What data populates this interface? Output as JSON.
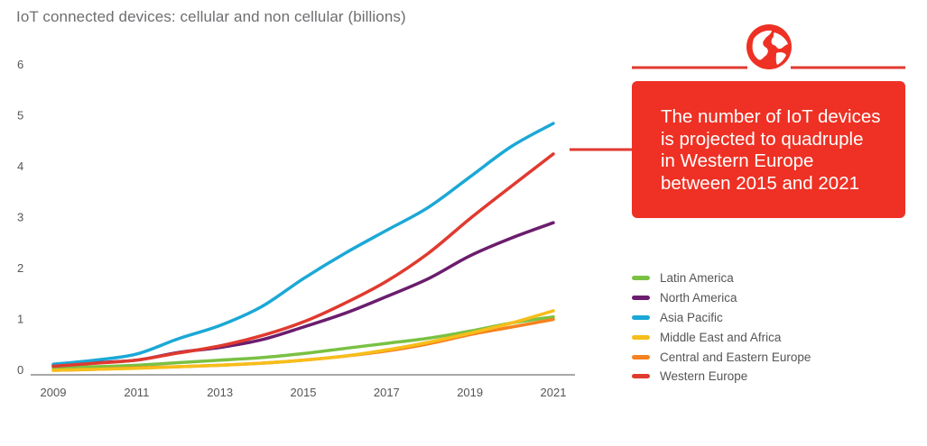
{
  "title": "IoT connected devices: cellular and non cellular (billions)",
  "callout": {
    "lines": [
      "The number of IoT devices",
      "is projected to quadruple",
      "in Western Europe",
      "between 2015 and 2021"
    ],
    "icon": "globe-icon",
    "color": "#ee3124"
  },
  "chart_data": {
    "type": "line",
    "title": "IoT connected devices: cellular and non cellular (billions)",
    "xlabel": "",
    "ylabel": "",
    "x": [
      2009,
      2010,
      2011,
      2012,
      2013,
      2014,
      2015,
      2016,
      2017,
      2018,
      2019,
      2020,
      2021
    ],
    "xticks": [
      2009,
      2011,
      2013,
      2015,
      2017,
      2019,
      2021
    ],
    "xtick_labels": [
      "2009",
      "2011",
      "2013",
      "2015",
      "2017",
      "2019",
      "2021"
    ],
    "yticks": [
      0,
      1,
      2,
      3,
      4,
      5,
      6
    ],
    "ytick_labels": [
      "0",
      "1",
      "2",
      "3",
      "4",
      "5",
      "6"
    ],
    "ylim": [
      0,
      6
    ],
    "grid": false,
    "legend_position": "right",
    "series": [
      {
        "name": "Latin America",
        "color": "#7ac143",
        "values": [
          0.05,
          0.07,
          0.1,
          0.15,
          0.2,
          0.25,
          0.33,
          0.43,
          0.53,
          0.63,
          0.77,
          0.93,
          1.05
        ]
      },
      {
        "name": "North America",
        "color": "#6b1d6e",
        "values": [
          0.1,
          0.15,
          0.2,
          0.35,
          0.45,
          0.6,
          0.85,
          1.12,
          1.45,
          1.8,
          2.25,
          2.6,
          2.9
        ]
      },
      {
        "name": "Asia Pacific",
        "color": "#1ba8d6",
        "values": [
          0.12,
          0.2,
          0.32,
          0.62,
          0.88,
          1.25,
          1.8,
          2.3,
          2.75,
          3.2,
          3.8,
          4.4,
          4.85
        ]
      },
      {
        "name": "Middle East and Africa",
        "color": "#f6be1a",
        "values": [
          0.0,
          0.02,
          0.04,
          0.07,
          0.1,
          0.14,
          0.2,
          0.28,
          0.4,
          0.55,
          0.73,
          0.93,
          1.17
        ]
      },
      {
        "name": "Central and Eastern Europe",
        "color": "#f5821f",
        "values": [
          0.0,
          0.02,
          0.05,
          0.07,
          0.1,
          0.14,
          0.2,
          0.28,
          0.38,
          0.52,
          0.7,
          0.85,
          1.0
        ]
      },
      {
        "name": "Western Europe",
        "color": "#e03a2f",
        "values": [
          0.08,
          0.14,
          0.2,
          0.34,
          0.48,
          0.68,
          0.95,
          1.32,
          1.75,
          2.3,
          2.98,
          3.62,
          4.25
        ]
      }
    ]
  }
}
